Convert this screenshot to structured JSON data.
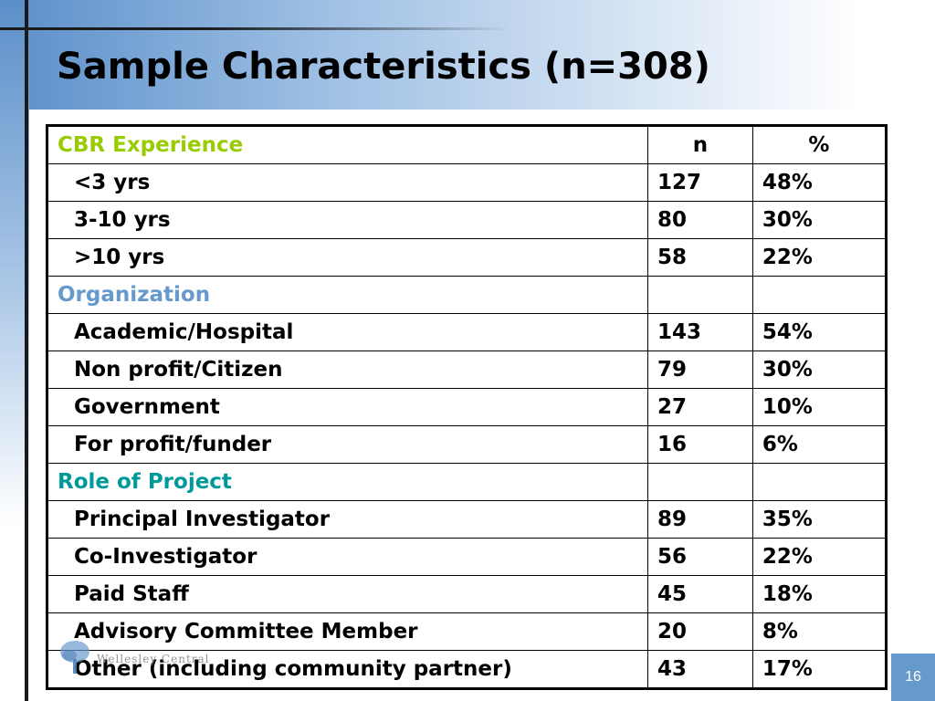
{
  "slide": {
    "title": "Sample Characteristics (n=308)",
    "page_number": "16",
    "logo_text": "Wellesley Central"
  },
  "table": {
    "header": {
      "label": "CBR Experience",
      "n": "n",
      "pct": "%"
    },
    "rows": [
      {
        "label": "<3 yrs",
        "n": "127",
        "pct": "48%"
      },
      {
        "label": "3-10 yrs",
        "n": "80",
        "pct": "30%"
      },
      {
        "label": ">10 yrs",
        "n": "58",
        "pct": "22%"
      },
      {
        "section": "Organization"
      },
      {
        "label": "Academic/Hospital",
        "n": "143",
        "pct": "54%"
      },
      {
        "label": "Non profit/Citizen",
        "n": "79",
        "pct": "30%"
      },
      {
        "label": "Government",
        "n": "27",
        "pct": "10%"
      },
      {
        "label": "For profit/funder",
        "n": "16",
        "pct": "6%"
      },
      {
        "section": "Role of Project"
      },
      {
        "label": "Principal Investigator",
        "n": "89",
        "pct": "35%"
      },
      {
        "label": "Co-Investigator",
        "n": "56",
        "pct": "22%"
      },
      {
        "label": "Paid Staff",
        "n": "45",
        "pct": "18%"
      },
      {
        "label": "Advisory Committee Member",
        "n": "20",
        "pct": "8%"
      },
      {
        "label": "Other (including community partner)",
        "n": "43",
        "pct": "17%"
      }
    ]
  },
  "colors": {
    "cbr_heading": "#99cc00",
    "organization_heading": "#6699cc",
    "role_heading": "#009999",
    "accent_blue": "#6699cc"
  }
}
